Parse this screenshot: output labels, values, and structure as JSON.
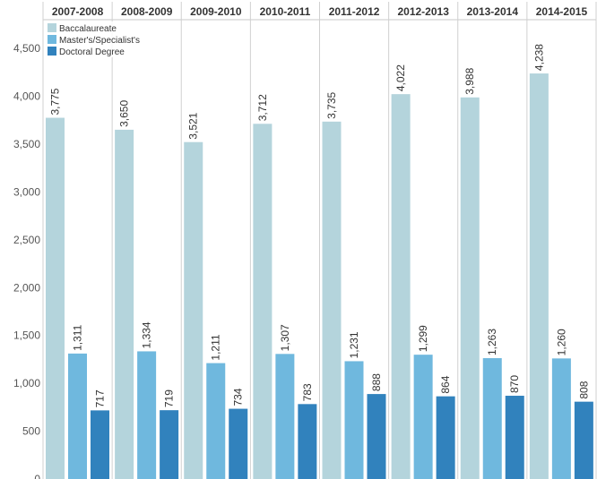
{
  "chart_data": {
    "type": "bar",
    "categories": [
      "2007-2008",
      "2008-2009",
      "2009-2010",
      "2010-2011",
      "2011-2012",
      "2012-2013",
      "2013-2014",
      "2014-2015"
    ],
    "series": [
      {
        "name": "Baccalaureate",
        "color": "#b4d4dc",
        "values": [
          3775,
          3650,
          3521,
          3712,
          3735,
          4022,
          3988,
          4238
        ],
        "labels": [
          "3,775",
          "3,650",
          "3,521",
          "3,712",
          "3,735",
          "4,022",
          "3,988",
          "4,238"
        ]
      },
      {
        "name": "Master's/Specialist's",
        "color": "#6fb8de",
        "values": [
          1311,
          1334,
          1211,
          1307,
          1231,
          1299,
          1263,
          1260
        ],
        "labels": [
          "1,311",
          "1,334",
          "1,211",
          "1,307",
          "1,231",
          "1,299",
          "1,263",
          "1,260"
        ]
      },
      {
        "name": "Doctoral Degree",
        "color": "#3182bd",
        "values": [
          717,
          719,
          734,
          783,
          888,
          864,
          870,
          808
        ],
        "labels": [
          "717",
          "719",
          "734",
          "783",
          "888",
          "864",
          "870",
          "808"
        ]
      }
    ],
    "yticks": [
      0,
      500,
      1000,
      1500,
      2000,
      2500,
      3000,
      3500,
      4000,
      4500
    ],
    "ytick_labels": [
      "0",
      "500",
      "1,000",
      "1,500",
      "2,000",
      "2,500",
      "3,000",
      "3,500",
      "4,000",
      "4,500"
    ],
    "ylim": [
      0,
      4800
    ],
    "title": "",
    "xlabel": "",
    "ylabel": "",
    "legend_position": "top-left",
    "grid": false
  }
}
